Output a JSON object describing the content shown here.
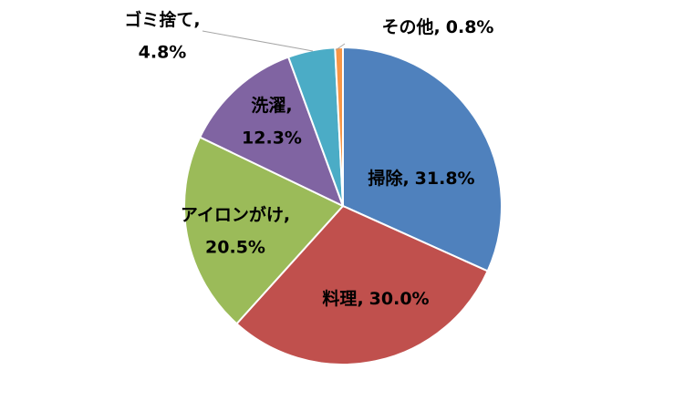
{
  "chart_data": {
    "type": "pie",
    "categories": [
      "掃除",
      "料理",
      "アイロンがけ",
      "洗濯",
      "ゴミ捨て",
      "その他"
    ],
    "values": [
      31.8,
      30.0,
      20.5,
      12.3,
      4.8,
      0.8
    ],
    "value_labels": [
      "31.8%",
      "30.0%",
      "20.5%",
      "12.3%",
      "4.8%",
      "0.8%"
    ],
    "label_separator": ",",
    "colors": [
      "#4f81bd",
      "#c0504d",
      "#9bbb59",
      "#8064a2",
      "#4bacc6",
      "#f79646"
    ]
  }
}
